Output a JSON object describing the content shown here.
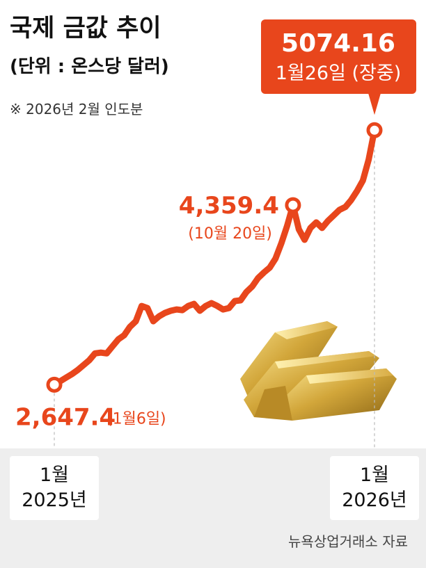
{
  "chart_data": {
    "type": "line",
    "title": "국제 금값 추이",
    "subtitle": "(단위 : 온스당 달러)",
    "note": "※ 2026년 2월 인도분",
    "source": "뉴욕상업거래소 자료",
    "color": "#e8461c",
    "ylim": [
      2000,
      5500
    ],
    "categories": [
      "1월\n2025년",
      null,
      null,
      null,
      null,
      null,
      null,
      null,
      null,
      null,
      null,
      null,
      null,
      null,
      null,
      null,
      null,
      null,
      null,
      null,
      null,
      null,
      null,
      null,
      null,
      null,
      null,
      null,
      null,
      null,
      null,
      null,
      null,
      null,
      null,
      null,
      null,
      null,
      null,
      null,
      null,
      null,
      null,
      null,
      null,
      null,
      null,
      null,
      null,
      null,
      null,
      null,
      null,
      null,
      null,
      "1월\n2026년"
    ],
    "values": [
      2647.4,
      2680,
      2714,
      2747,
      2787,
      2833,
      2880,
      2946,
      2953,
      2946,
      3013,
      3080,
      3119,
      3199,
      3252,
      3398,
      3378,
      3252,
      3299,
      3332,
      3352,
      3365,
      3358,
      3398,
      3418,
      3352,
      3398,
      3425,
      3398,
      3365,
      3378,
      3445,
      3452,
      3531,
      3584,
      3664,
      3717,
      3764,
      3850,
      3996,
      4162,
      4359.4,
      4129,
      4029,
      4142,
      4195,
      4142,
      4209,
      4262,
      4315,
      4342,
      4408,
      4494,
      4594,
      4793,
      5074.16
    ],
    "value_labels": [
      "2,647.4",
      null,
      null,
      null,
      null,
      null,
      null,
      null,
      null,
      null,
      null,
      null,
      null,
      null,
      null,
      null,
      null,
      null,
      null,
      null,
      null,
      null,
      null,
      null,
      null,
      null,
      null,
      null,
      null,
      null,
      null,
      null,
      null,
      null,
      null,
      null,
      null,
      null,
      null,
      null,
      null,
      "4,359.4",
      null,
      null,
      null,
      null,
      null,
      null,
      null,
      null,
      null,
      null,
      null,
      null,
      null,
      "5074.16"
    ],
    "notes": [
      "(1월6일)",
      null,
      null,
      null,
      null,
      null,
      null,
      null,
      null,
      null,
      null,
      null,
      null,
      null,
      null,
      null,
      null,
      null,
      null,
      null,
      null,
      null,
      null,
      null,
      null,
      null,
      null,
      null,
      null,
      null,
      null,
      null,
      null,
      null,
      null,
      null,
      null,
      null,
      null,
      null,
      null,
      "(10월 20일)",
      null,
      null,
      null,
      null,
      null,
      null,
      null,
      null,
      null,
      null,
      null,
      null,
      null,
      "1월26일 (장중)"
    ]
  }
}
